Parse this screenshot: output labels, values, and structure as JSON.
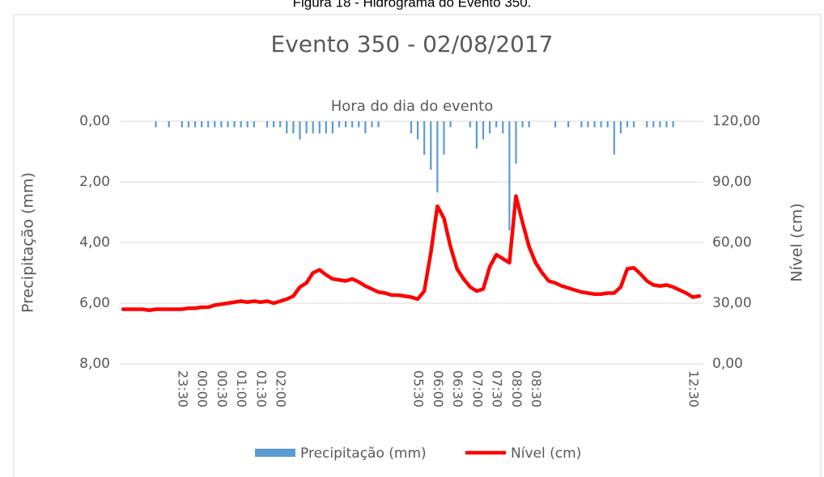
{
  "caption": "Figura 18 - Hidrograma do Evento 350.",
  "chart_data": {
    "type": "bar-line",
    "title": "Evento 350 - 02/08/2017",
    "x_label": "Hora do dia do evento",
    "y_label": "Precipitação (mm)",
    "y2_label": "Nível (cm)",
    "categories": [
      null,
      null,
      null,
      null,
      null,
      null,
      null,
      null,
      null,
      "23:30",
      null,
      null,
      "00:00",
      null,
      null,
      "00:30",
      null,
      null,
      "01:00",
      null,
      null,
      "01:30",
      null,
      null,
      "02:00",
      null,
      null,
      null,
      null,
      null,
      null,
      null,
      null,
      null,
      null,
      null,
      null,
      null,
      null,
      null,
      null,
      null,
      null,
      null,
      null,
      "05:30",
      null,
      null,
      "06:00",
      null,
      null,
      "06:30",
      null,
      null,
      "07:00",
      null,
      null,
      "07:30",
      null,
      null,
      "08:00",
      null,
      null,
      "08:30",
      null,
      null,
      null,
      null,
      null,
      null,
      null,
      null,
      null,
      null,
      null,
      null,
      null,
      null,
      null,
      null,
      null,
      null,
      null,
      null,
      null,
      null,
      null,
      "12:30",
      null
    ],
    "series": [
      {
        "name": "Precipitação (mm)",
        "type": "bar",
        "axis": "y",
        "color": "#5b9bd5",
        "values": [
          0,
          0,
          0,
          0,
          0,
          0.2,
          0,
          0.2,
          0,
          0.2,
          0.2,
          0.2,
          0.2,
          0.2,
          0.2,
          0.2,
          0.2,
          0.2,
          0.2,
          0.2,
          0.2,
          0,
          0.2,
          0.2,
          0.2,
          0.4,
          0.4,
          0.6,
          0.4,
          0.4,
          0.4,
          0.4,
          0.4,
          0.2,
          0.2,
          0.2,
          0.2,
          0.4,
          0.2,
          0.2,
          0,
          0,
          0,
          0,
          0.4,
          0.6,
          1.1,
          1.6,
          2.35,
          1.1,
          0.2,
          0,
          0,
          0.2,
          0.9,
          0.6,
          0.4,
          0.2,
          0.4,
          3.6,
          1.4,
          0.2,
          0.2,
          0,
          0,
          0,
          0.2,
          0,
          0.2,
          0,
          0.2,
          0.2,
          0.2,
          0.2,
          0.2,
          1.1,
          0.4,
          0.2,
          0.2,
          0,
          0.2,
          0.2,
          0.2,
          0.2,
          0.2,
          0,
          0,
          0,
          0
        ]
      },
      {
        "name": "Nível (cm)",
        "type": "line",
        "axis": "y2",
        "color": "#ff0000",
        "values": [
          27,
          27,
          27,
          27,
          26.5,
          27,
          27,
          27,
          27,
          27,
          27.5,
          27.5,
          28,
          28,
          29,
          29.5,
          30,
          30.5,
          31,
          30.5,
          31,
          30.5,
          31,
          30,
          31,
          32,
          33.5,
          38,
          40,
          45,
          46.5,
          44,
          42,
          41.5,
          41,
          42,
          40.5,
          38.5,
          37,
          35.5,
          35,
          34,
          34,
          33.5,
          33,
          32,
          36,
          55,
          78,
          72,
          58,
          47,
          42,
          38,
          36,
          37,
          48,
          54,
          52,
          50,
          83,
          70,
          58,
          50,
          45,
          41,
          40,
          38.5,
          37.5,
          36.5,
          35.5,
          35,
          34.5,
          34.5,
          35,
          35,
          38,
          47,
          47.5,
          44.5,
          41,
          39,
          38.5,
          39,
          38,
          36.5,
          35,
          33,
          33.5
        ]
      }
    ],
    "ylim": [
      0,
      8
    ],
    "y_inverted": true,
    "yticks": [
      {
        "value": 0,
        "label": "0,00"
      },
      {
        "value": 2,
        "label": "2,00"
      },
      {
        "value": 4,
        "label": "4,00"
      },
      {
        "value": 6,
        "label": "6,00"
      },
      {
        "value": 8,
        "label": "8,00"
      }
    ],
    "y2lim": [
      0,
      120
    ],
    "y2ticks": [
      {
        "value": 0,
        "label": "0,00"
      },
      {
        "value": 30,
        "label": "30,00"
      },
      {
        "value": 60,
        "label": "60,00"
      },
      {
        "value": 90,
        "label": "90,00"
      },
      {
        "value": 120,
        "label": "120,00"
      }
    ],
    "grid": true,
    "legend": "bottom"
  }
}
